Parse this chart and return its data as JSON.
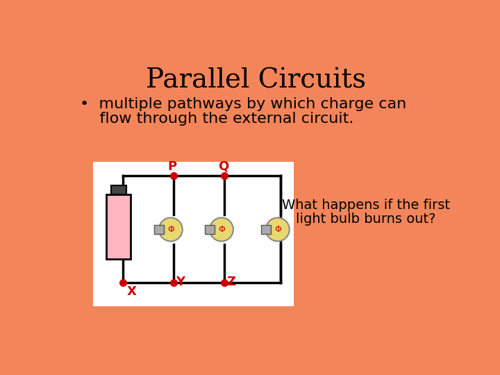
{
  "bg_color": "#F4855A",
  "title": "Parallel Circuits",
  "title_fontsize": 28,
  "bullet_line1": "•  multiple pathways by which charge can",
  "bullet_line2": "    flow through the external circuit.",
  "bullet_fontsize": 16,
  "question_line1": "What happens if the first",
  "question_line2": "light bulb burns out?",
  "question_fontsize": 14,
  "white_box_color": "#FFFFFF",
  "circuit_color": "#000000",
  "battery_color": "#FFB6C1",
  "battery_border": "#000000",
  "node_color": "#CC0000",
  "label_color": "#CC0000",
  "bulb_body_color": "#E8D870",
  "bulb_connector_color": "#999999"
}
